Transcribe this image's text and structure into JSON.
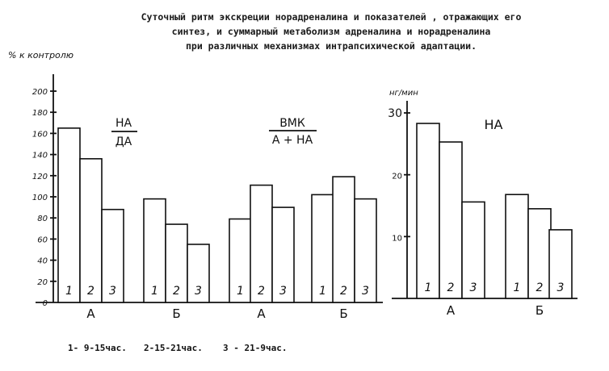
{
  "title": "Суточный ритм экскреции норадреналина и показателей , отражающих его\nсинтез, и суммарный метаболизм адреналина и норадреналина\nпри различных механизмах интрапсихической адаптации.",
  "chart_data": [
    {
      "type": "bar",
      "ylabel": "% к контролю",
      "ylim": [
        0,
        200
      ],
      "yticks": [
        0,
        20,
        40,
        60,
        80,
        100,
        120,
        140,
        160,
        180,
        200
      ],
      "group_labels": [
        "А",
        "Б"
      ],
      "bar_labels": [
        "1",
        "2",
        "3"
      ],
      "panels": [
        {
          "title_top": "НА",
          "title_bottom": "ДА",
          "groups": [
            [
              165,
              136,
              88
            ],
            [
              98,
              74,
              55
            ]
          ]
        },
        {
          "title_top": "ВМК",
          "title_bottom": "А + НА",
          "groups": [
            [
              79,
              111,
              90
            ],
            [
              102,
              119,
              98
            ]
          ]
        }
      ]
    },
    {
      "type": "bar",
      "ylabel": "нг/мин",
      "ylim": [
        0,
        30
      ],
      "yticks": [
        10,
        20,
        30
      ],
      "title_top": "НА",
      "group_labels": [
        "А",
        "Б"
      ],
      "bar_labels": [
        "1",
        "2",
        "3"
      ],
      "groups": [
        [
          28.3,
          25.3,
          15.6
        ],
        [
          16.8,
          14.5,
          11.1
        ]
      ]
    }
  ],
  "legend": [
    "1- 9-15час.",
    "2-15-21час.",
    "3 - 21-9час."
  ]
}
